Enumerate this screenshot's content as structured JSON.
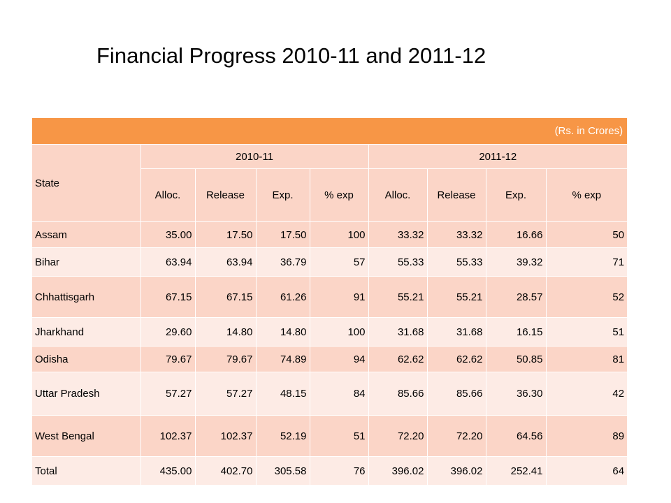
{
  "slide": {
    "title": "Financial Progress 2010-11 and 2011-12"
  },
  "colors": {
    "header_orange": "#f79646",
    "band_dark": "#fbd5c7",
    "band_light": "#fdebe5"
  },
  "table": {
    "unit_note": "(Rs. in Crores)",
    "state_header": "State",
    "years": [
      "2010-11",
      "2011-12"
    ],
    "subheaders": [
      "Alloc.",
      "Release",
      "Exp.",
      "% exp",
      "Alloc.",
      "Release",
      "Exp.",
      "% exp"
    ],
    "rows": [
      {
        "state": "Assam",
        "values": [
          "35.00",
          "17.50",
          "17.50",
          "100",
          "33.32",
          "33.32",
          "16.66",
          "50"
        ]
      },
      {
        "state": "Bihar",
        "values": [
          "63.94",
          "63.94",
          "36.79",
          "57",
          "55.33",
          "55.33",
          "39.32",
          "71"
        ]
      },
      {
        "state": "Chhattisgarh",
        "values": [
          "67.15",
          "67.15",
          "61.26",
          "91",
          "55.21",
          "55.21",
          "28.57",
          "52"
        ]
      },
      {
        "state": "Jharkhand",
        "values": [
          "29.60",
          "14.80",
          "14.80",
          "100",
          "31.68",
          "31.68",
          "16.15",
          "51"
        ]
      },
      {
        "state": "Odisha",
        "values": [
          "79.67",
          "79.67",
          "74.89",
          "94",
          "62.62",
          "62.62",
          "50.85",
          "81"
        ]
      },
      {
        "state": "Uttar Pradesh",
        "values": [
          "57.27",
          "57.27",
          "48.15",
          "84",
          "85.66",
          "85.66",
          "36.30",
          "42"
        ]
      },
      {
        "state": "West Bengal",
        "values": [
          "102.37",
          "102.37",
          "52.19",
          "51",
          "72.20",
          "72.20",
          "64.56",
          "89"
        ]
      },
      {
        "state": "Total",
        "values": [
          "435.00",
          "402.70",
          "305.58",
          "76",
          "396.02",
          "396.02",
          "252.41",
          "64"
        ]
      }
    ]
  }
}
